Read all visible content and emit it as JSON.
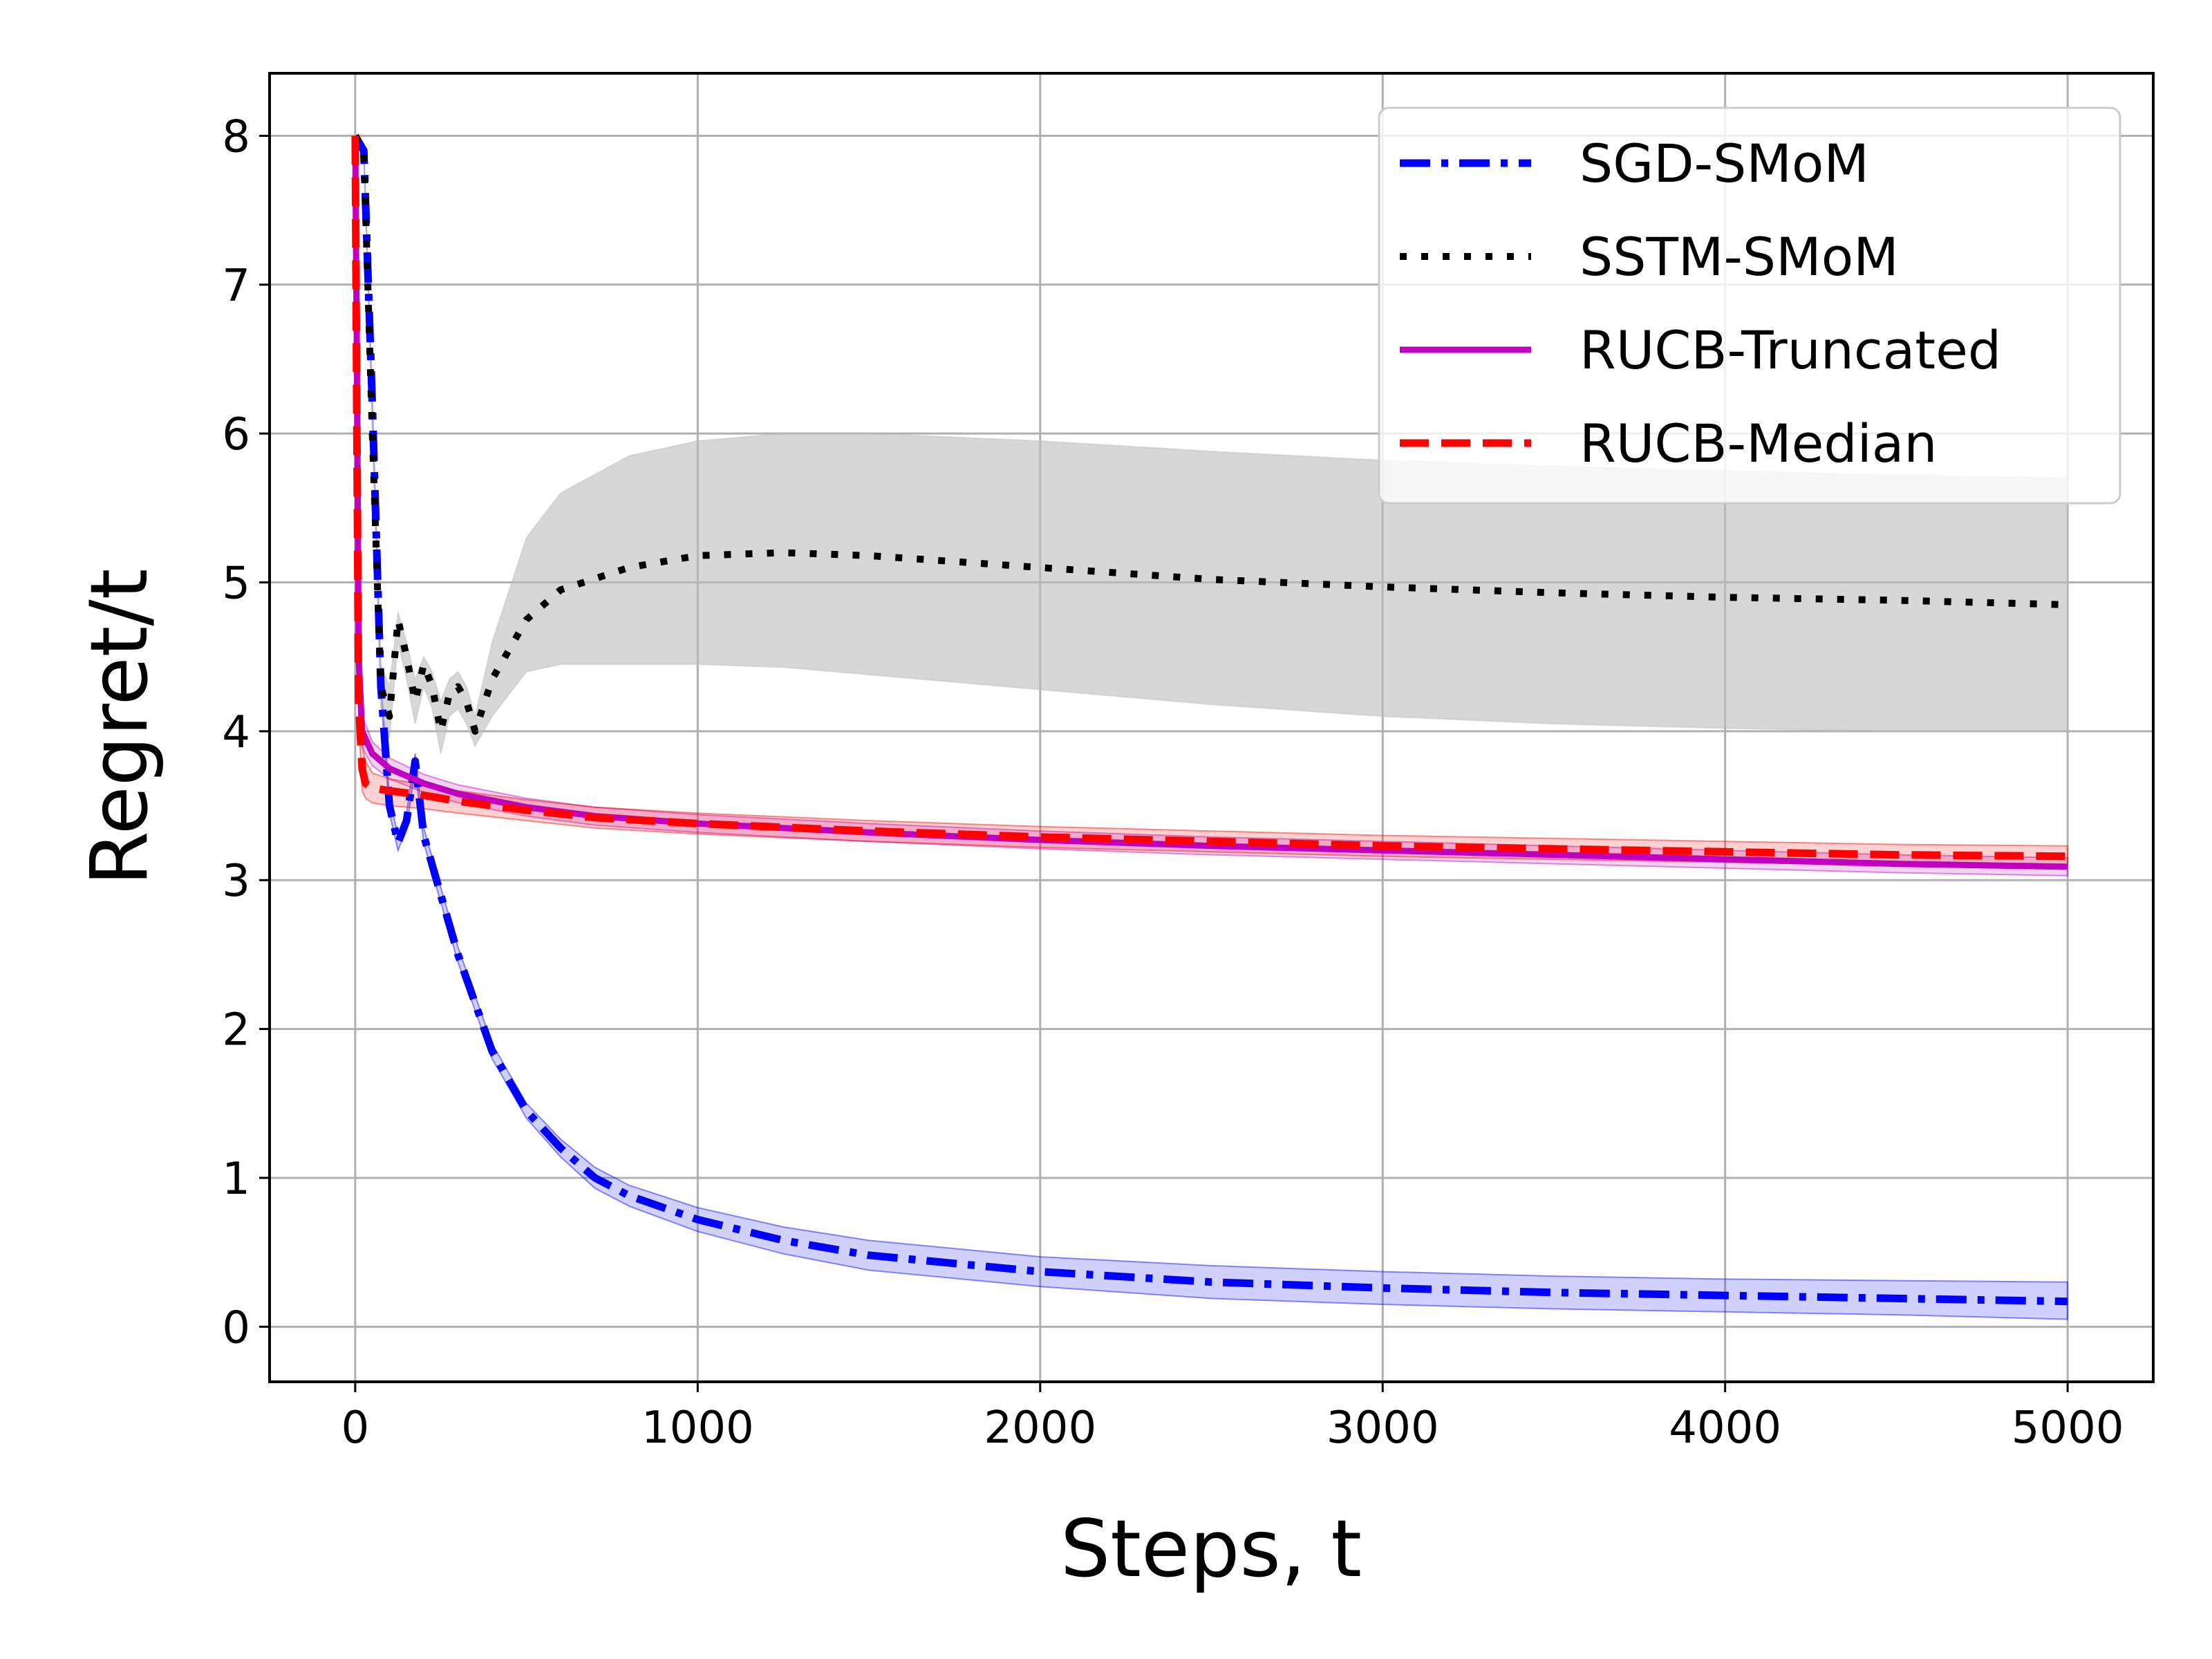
{
  "chart_data": {
    "type": "line",
    "xlabel": "Steps, t",
    "ylabel": "Regret/t",
    "xlim": [
      -250,
      5250
    ],
    "ylim": [
      -0.37,
      8.42
    ],
    "xticks": [
      0,
      1000,
      2000,
      3000,
      4000,
      5000
    ],
    "yticks": [
      0,
      1,
      2,
      3,
      4,
      5,
      6,
      7,
      8
    ],
    "grid": true,
    "legend_position": "top-right",
    "series": [
      {
        "name": "SGD-SMoM",
        "color": "#0000ff",
        "style": "dashdot",
        "x": [
          0,
          25,
          50,
          75,
          100,
          125,
          150,
          175,
          200,
          250,
          300,
          400,
          500,
          600,
          700,
          800,
          1000,
          1250,
          1500,
          2000,
          2500,
          3000,
          3500,
          4000,
          4500,
          5000
        ],
        "y": [
          8.0,
          7.9,
          6.2,
          4.3,
          3.5,
          3.25,
          3.4,
          3.8,
          3.3,
          2.9,
          2.5,
          1.85,
          1.45,
          1.2,
          1.0,
          0.88,
          0.72,
          0.58,
          0.48,
          0.37,
          0.3,
          0.26,
          0.23,
          0.21,
          0.19,
          0.17
        ],
        "band_upper": [
          8.0,
          7.9,
          6.2,
          4.35,
          3.55,
          3.3,
          3.45,
          3.85,
          3.35,
          2.95,
          2.55,
          1.9,
          1.5,
          1.26,
          1.07,
          0.95,
          0.8,
          0.67,
          0.58,
          0.47,
          0.41,
          0.37,
          0.34,
          0.32,
          0.31,
          0.3
        ],
        "band_lower": [
          8.0,
          7.9,
          6.2,
          4.25,
          3.45,
          3.2,
          3.35,
          3.75,
          3.25,
          2.85,
          2.45,
          1.8,
          1.4,
          1.14,
          0.93,
          0.81,
          0.64,
          0.49,
          0.38,
          0.27,
          0.19,
          0.15,
          0.12,
          0.1,
          0.08,
          0.05
        ]
      },
      {
        "name": "SSTM-SMoM",
        "color": "#000000",
        "style": "dotted",
        "x": [
          0,
          25,
          50,
          75,
          100,
          125,
          150,
          175,
          200,
          225,
          250,
          275,
          300,
          325,
          350,
          400,
          500,
          600,
          800,
          1000,
          1250,
          1500,
          2000,
          2500,
          3000,
          3500,
          4000,
          4500,
          5000
        ],
        "y": [
          8.0,
          7.9,
          6.0,
          4.3,
          4.1,
          4.75,
          4.5,
          4.2,
          4.45,
          4.3,
          4.0,
          4.25,
          4.3,
          4.2,
          4.0,
          4.35,
          4.75,
          4.95,
          5.1,
          5.18,
          5.2,
          5.18,
          5.1,
          5.02,
          4.97,
          4.93,
          4.9,
          4.88,
          4.85
        ],
        "band_upper": [
          8.0,
          7.9,
          6.05,
          4.45,
          4.3,
          4.8,
          4.6,
          4.35,
          4.5,
          4.4,
          4.2,
          4.35,
          4.4,
          4.3,
          4.1,
          4.6,
          5.3,
          5.6,
          5.85,
          5.95,
          6.0,
          6.0,
          5.95,
          5.88,
          5.82,
          5.78,
          5.75,
          5.72,
          5.7
        ],
        "band_lower": [
          8.0,
          7.9,
          5.95,
          4.15,
          3.95,
          4.6,
          4.35,
          4.05,
          4.3,
          4.15,
          3.85,
          4.1,
          4.15,
          4.05,
          3.9,
          4.1,
          4.4,
          4.45,
          4.45,
          4.45,
          4.43,
          4.38,
          4.28,
          4.18,
          4.1,
          4.05,
          4.02,
          4.0,
          4.0
        ]
      },
      {
        "name": "RUCB-Truncated",
        "color": "#bf00bf",
        "style": "solid",
        "x": [
          0,
          5,
          10,
          20,
          30,
          50,
          100,
          200,
          300,
          500,
          700,
          1000,
          1500,
          2000,
          2500,
          3000,
          3500,
          4000,
          4500,
          5000
        ],
        "y": [
          8.0,
          6.5,
          4.5,
          4.0,
          3.95,
          3.85,
          3.75,
          3.65,
          3.58,
          3.49,
          3.43,
          3.38,
          3.32,
          3.27,
          3.23,
          3.2,
          3.17,
          3.14,
          3.11,
          3.09
        ],
        "band_upper": [
          8.0,
          6.5,
          4.6,
          4.1,
          4.05,
          3.93,
          3.82,
          3.71,
          3.64,
          3.55,
          3.49,
          3.44,
          3.38,
          3.33,
          3.29,
          3.26,
          3.23,
          3.2,
          3.17,
          3.15
        ],
        "band_lower": [
          8.0,
          6.5,
          4.4,
          3.9,
          3.85,
          3.77,
          3.68,
          3.59,
          3.52,
          3.43,
          3.37,
          3.32,
          3.26,
          3.21,
          3.17,
          3.14,
          3.11,
          3.08,
          3.05,
          3.03
        ]
      },
      {
        "name": "RUCB-Median",
        "color": "#ff0000",
        "style": "dashed",
        "x": [
          0,
          5,
          10,
          20,
          30,
          50,
          100,
          200,
          300,
          500,
          700,
          1000,
          1500,
          2000,
          2500,
          3000,
          3500,
          4000,
          4500,
          5000
        ],
        "y": [
          8.0,
          6.0,
          4.2,
          3.75,
          3.65,
          3.62,
          3.6,
          3.57,
          3.53,
          3.47,
          3.42,
          3.38,
          3.33,
          3.29,
          3.26,
          3.23,
          3.21,
          3.19,
          3.17,
          3.16
        ],
        "band_upper": [
          8.0,
          6.0,
          4.3,
          3.9,
          3.8,
          3.72,
          3.68,
          3.64,
          3.6,
          3.54,
          3.49,
          3.45,
          3.4,
          3.36,
          3.33,
          3.3,
          3.28,
          3.26,
          3.24,
          3.23
        ],
        "band_lower": [
          8.0,
          6.0,
          4.1,
          3.6,
          3.55,
          3.52,
          3.5,
          3.48,
          3.45,
          3.4,
          3.35,
          3.31,
          3.26,
          3.22,
          3.19,
          3.16,
          3.14,
          3.12,
          3.1,
          3.09
        ]
      }
    ]
  }
}
